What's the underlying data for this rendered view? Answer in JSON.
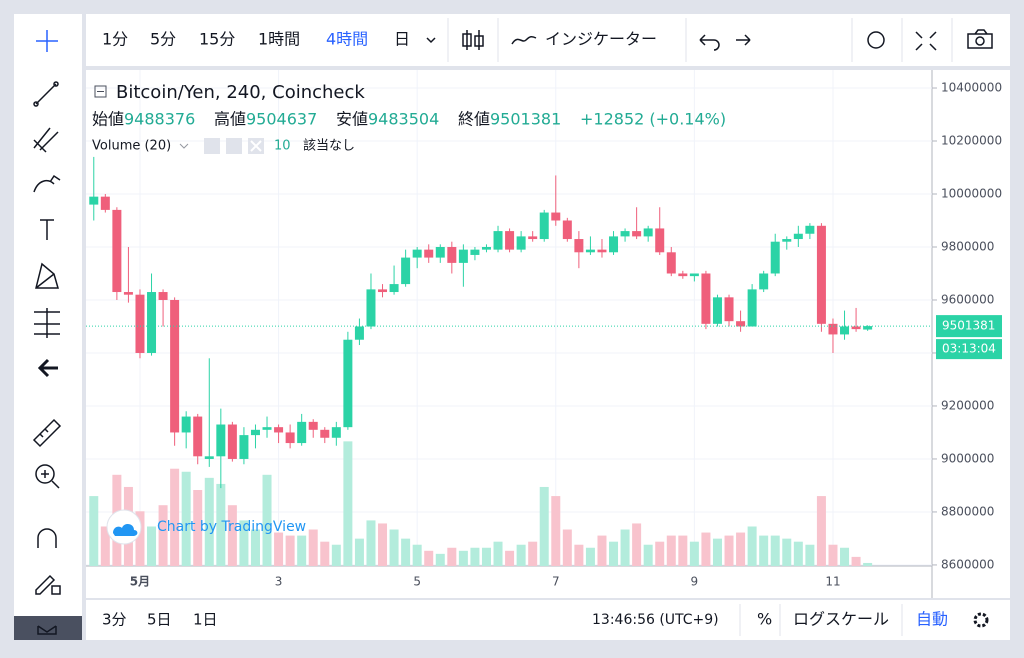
{
  "toolbar": {
    "intervals": [
      "1分",
      "5分",
      "15分",
      "1時間",
      "4時間",
      "日"
    ],
    "indicators": "インジケーター"
  },
  "bottom_bar": {
    "ranges": [
      "3分",
      "5日",
      "1日"
    ],
    "clock": "13:46:56 (UTC+9)",
    "percent": "%",
    "log_scale": "ログスケール",
    "auto": "自動"
  },
  "watermark": "Chart by TradingView",
  "chart_data": {
    "type": "candlestick",
    "title": "Bitcoin/Yen, 240, Coincheck",
    "ohlc_labels": [
      "始値",
      "高値",
      "安値",
      "終値"
    ],
    "change": "+12852 (+0.14%)",
    "volume_label": "Volume (20)",
    "volume_note": "該当なし",
    "countdown": "03:13:04",
    "up_color": "#2bd3a6",
    "down_color": "#ef5f7b",
    "volume_up_color": "#b3ecdc",
    "volume_down_color": "#f8c3cd",
    "categories": [
      null,
      null,
      null,
      null,
      "5月",
      null,
      null,
      null,
      null,
      null,
      null,
      null,
      null,
      null,
      null,
      null,
      "3",
      null,
      null,
      null,
      null,
      null,
      null,
      null,
      null,
      null,
      null,
      null,
      "5",
      null,
      null,
      null,
      null,
      null,
      null,
      null,
      null,
      null,
      null,
      null,
      "7",
      null,
      null,
      null,
      null,
      null,
      null,
      null,
      null,
      null,
      null,
      null,
      "9",
      null,
      null,
      null,
      null,
      null,
      null,
      null,
      null,
      null,
      null,
      null,
      "11",
      null,
      null,
      null
    ],
    "open": [
      9960000,
      9990000,
      9940000,
      9630000,
      9620000,
      9400000,
      9630000,
      9600000,
      9100000,
      9160000,
      9000000,
      9010000,
      9130000,
      9000000,
      9090000,
      9110000,
      9120000,
      9100000,
      9060000,
      9140000,
      9110000,
      9080000,
      9120000,
      9450000,
      9500000,
      9640000,
      9630000,
      9660000,
      9760000,
      9790000,
      9760000,
      9800000,
      9740000,
      9770000,
      9790000,
      9790000,
      9860000,
      9790000,
      9840000,
      9830000,
      9930000,
      9900000,
      9830000,
      9780000,
      9790000,
      9780000,
      9840000,
      9860000,
      9840000,
      9870000,
      9780000,
      9700000,
      9690000,
      9700000,
      9510000,
      9610000,
      9520000,
      9500000,
      9640000,
      9700000,
      9820000,
      9830000,
      9850000,
      9880000,
      9510000,
      9470000,
      9500000,
      9488376
    ],
    "high": [
      10140000,
      10000000,
      9950000,
      9800000,
      9640000,
      9700000,
      9640000,
      9610000,
      9180000,
      9170000,
      9380000,
      9190000,
      9140000,
      9120000,
      9130000,
      9160000,
      9130000,
      9130000,
      9170000,
      9150000,
      9120000,
      9140000,
      9480000,
      9530000,
      9700000,
      9660000,
      9730000,
      9790000,
      9800000,
      9810000,
      9810000,
      9820000,
      9810000,
      9800000,
      9810000,
      9880000,
      9870000,
      9860000,
      9860000,
      9940000,
      10070000,
      9910000,
      9860000,
      9840000,
      9830000,
      9860000,
      9870000,
      9950000,
      9880000,
      9950000,
      9800000,
      9710000,
      9700000,
      9710000,
      9620000,
      9620000,
      9560000,
      9660000,
      9710000,
      9850000,
      9840000,
      9880000,
      9890000,
      9890000,
      9530000,
      9560000,
      9570000,
      9504637
    ],
    "low": [
      9900000,
      9930000,
      9600000,
      9590000,
      9380000,
      9390000,
      9500000,
      9050000,
      9040000,
      8980000,
      8970000,
      8890000,
      8990000,
      8980000,
      9040000,
      9080000,
      9060000,
      9040000,
      9050000,
      9080000,
      9060000,
      9050000,
      9110000,
      9430000,
      9490000,
      9610000,
      9620000,
      9650000,
      9720000,
      9740000,
      9740000,
      9700000,
      9650000,
      9750000,
      9780000,
      9780000,
      9780000,
      9780000,
      9820000,
      9820000,
      9880000,
      9820000,
      9720000,
      9770000,
      9760000,
      9770000,
      9820000,
      9830000,
      9820000,
      9770000,
      9690000,
      9680000,
      9670000,
      9490000,
      9500000,
      9500000,
      9480000,
      9500000,
      9630000,
      9690000,
      9790000,
      9800000,
      9830000,
      9480000,
      9400000,
      9450000,
      9480000,
      9483504
    ],
    "close": [
      9990000,
      9940000,
      9630000,
      9620000,
      9400000,
      9630000,
      9600000,
      9100000,
      9160000,
      9010000,
      9010000,
      9130000,
      9000000,
      9090000,
      9110000,
      9120000,
      9100000,
      9060000,
      9140000,
      9110000,
      9080000,
      9120000,
      9450000,
      9500000,
      9640000,
      9630000,
      9660000,
      9760000,
      9790000,
      9760000,
      9800000,
      9740000,
      9790000,
      9790000,
      9800000,
      9860000,
      9790000,
      9840000,
      9830000,
      9930000,
      9900000,
      9830000,
      9780000,
      9790000,
      9780000,
      9840000,
      9860000,
      9840000,
      9870000,
      9780000,
      9700000,
      9690000,
      9700000,
      9510000,
      9610000,
      9520000,
      9500000,
      9640000,
      9700000,
      9820000,
      9830000,
      9850000,
      9880000,
      9510000,
      9470000,
      9500000,
      9490000,
      9501381
    ],
    "volume": [
      230,
      130,
      300,
      260,
      180,
      130,
      200,
      320,
      310,
      250,
      290,
      270,
      200,
      150,
      120,
      300,
      110,
      100,
      100,
      120,
      80,
      70,
      410,
      90,
      150,
      140,
      120,
      90,
      70,
      50,
      40,
      60,
      50,
      60,
      60,
      80,
      50,
      70,
      80,
      260,
      230,
      120,
      70,
      60,
      100,
      80,
      120,
      140,
      70,
      80,
      100,
      100,
      80,
      110,
      90,
      100,
      110,
      130,
      100,
      100,
      90,
      80,
      70,
      230,
      70,
      60,
      30,
      10
    ],
    "volume_ylim": [
      0,
      500
    ],
    "ylim": [
      8596000,
      10468000
    ],
    "yticks": [
      8600000,
      8800000,
      9000000,
      9200000,
      9400000,
      9600000,
      9800000,
      10000000,
      10200000,
      10400000
    ],
    "grid": true
  }
}
